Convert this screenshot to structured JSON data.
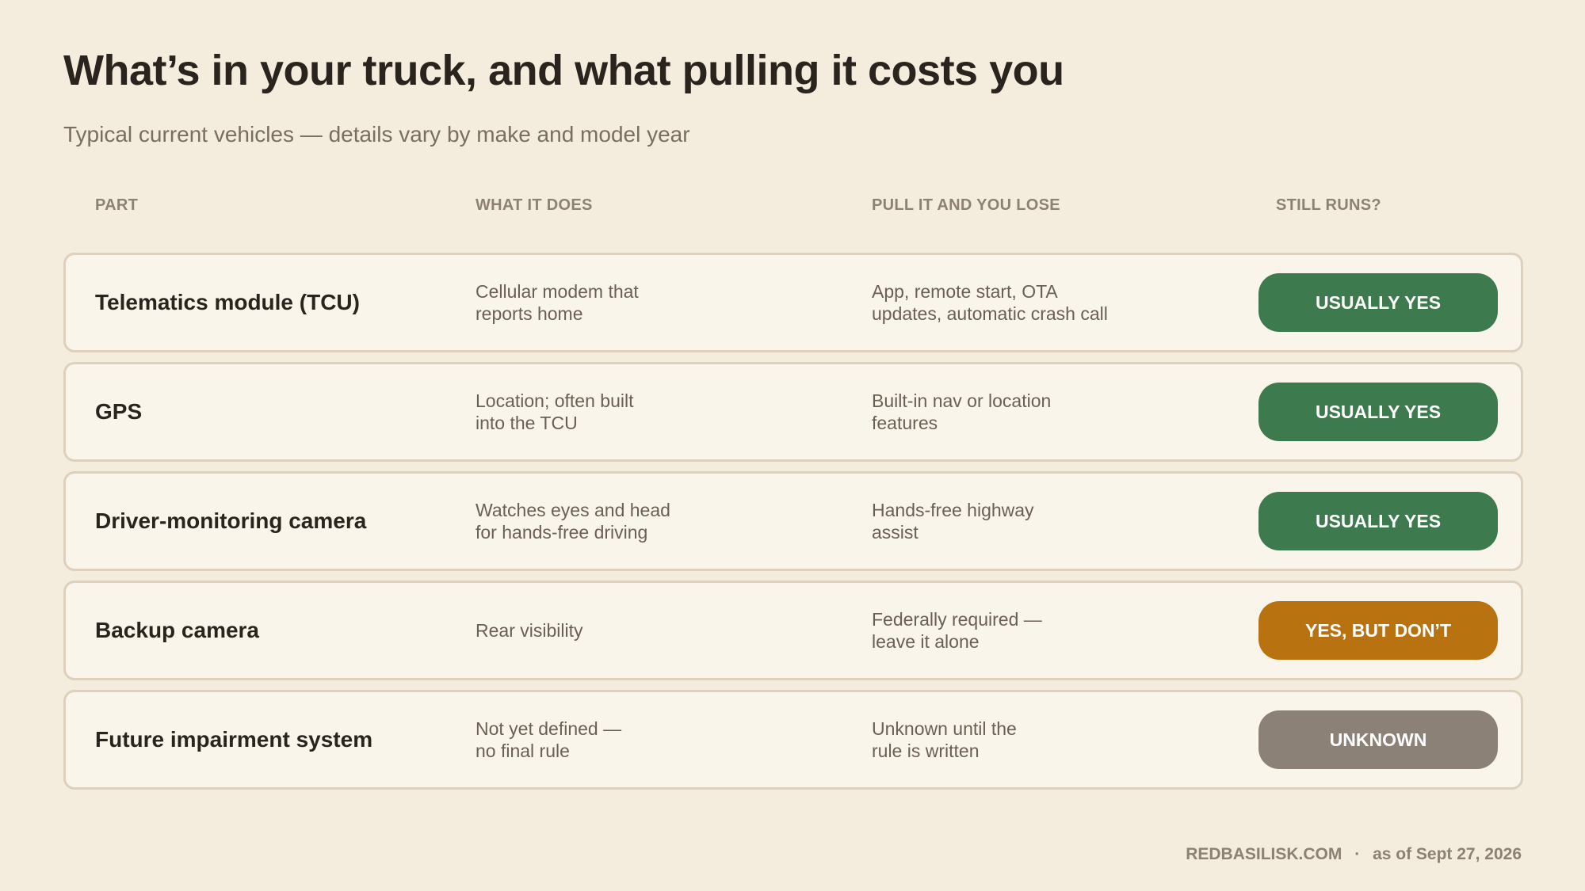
{
  "header": {
    "title": "What’s in your truck, and what pulling it costs you",
    "subtitle": "Typical current vehicles — details vary by make and model year"
  },
  "table": {
    "columns": [
      "PART",
      "WHAT IT DOES",
      "PULL IT AND YOU LOSE",
      "STILL RUNS?"
    ],
    "rows": [
      {
        "part": "Telematics module (TCU)",
        "does": [
          "Cellular modem that",
          "reports home"
        ],
        "lose": [
          "App, remote start, OTA",
          "updates, automatic crash call"
        ],
        "status": "USUALLY YES",
        "status_color": "#3d7a4d"
      },
      {
        "part": "GPS",
        "does": [
          "Location; often built",
          "into the TCU"
        ],
        "lose": [
          "Built-in nav or location",
          "features"
        ],
        "status": "USUALLY YES",
        "status_color": "#3d7a4d"
      },
      {
        "part": "Driver-monitoring camera",
        "does": [
          "Watches eyes and head",
          "for hands-free driving"
        ],
        "lose": [
          "Hands-free highway",
          "assist"
        ],
        "status": "USUALLY YES",
        "status_color": "#3d7a4d"
      },
      {
        "part": "Backup camera",
        "does": [
          "Rear visibility"
        ],
        "lose": [
          "Federally required —",
          "leave it alone"
        ],
        "status": "YES, BUT DON’T",
        "status_color": "#b8720f"
      },
      {
        "part": "Future impairment system",
        "does": [
          "Not yet defined —",
          "no final rule"
        ],
        "lose": [
          "Unknown until the",
          "rule is written"
        ],
        "status": "UNKNOWN",
        "status_color": "#8c8176"
      }
    ]
  },
  "footer": {
    "site": "REDBASILISK.COM",
    "separator": "·",
    "date": "as of Sept 27, 2026"
  }
}
